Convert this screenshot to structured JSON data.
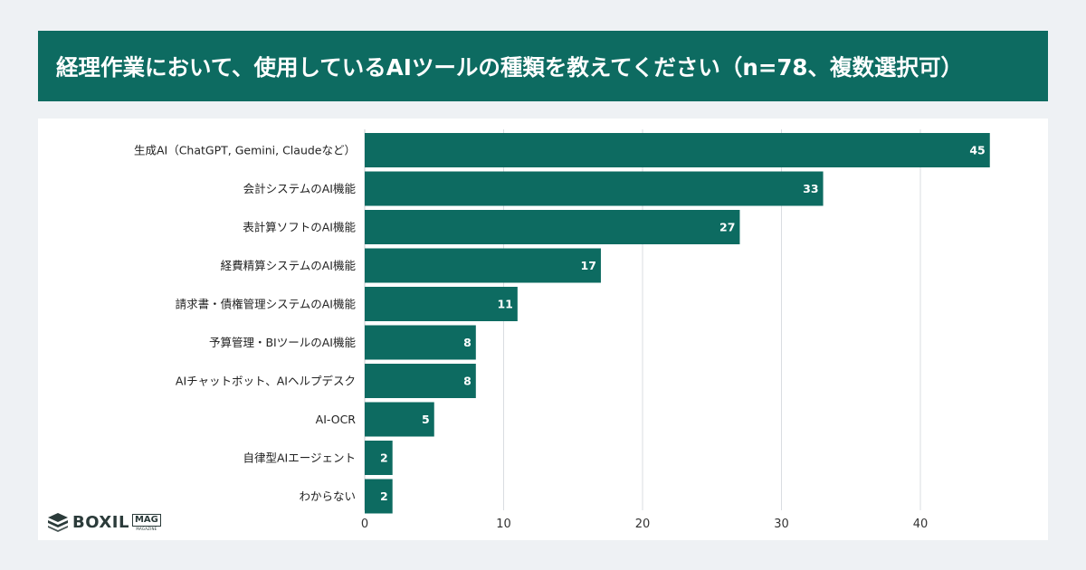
{
  "header": {
    "title": "経理作業において、使用しているAIツールの種類を教えてください（n=78、複数選択可）"
  },
  "logo": {
    "brand": "BOXIL",
    "sub_badge": "MAG",
    "sub_text": "MAGAZINE"
  },
  "colors": {
    "header_bg": "#0d6b61",
    "bar": "#0d6b61",
    "background": "#eef1f4"
  },
  "chart_data": {
    "type": "bar",
    "orientation": "horizontal",
    "categories": [
      "生成AI（ChatGPT, Gemini, Claudeなど）",
      "会計システムのAI機能",
      "表計算ソフトのAI機能",
      "経費精算システムのAI機能",
      "請求書・債権管理システムのAI機能",
      "予算管理・BIツールのAI機能",
      "AIチャットボット、AIヘルプデスク",
      "AI-OCR",
      "自律型AIエージェント",
      "わからない"
    ],
    "values": [
      45,
      33,
      27,
      17,
      11,
      8,
      8,
      5,
      2,
      2
    ],
    "xlim": [
      0,
      45
    ],
    "xticks": [
      0,
      10,
      20,
      30,
      40
    ],
    "grid": true,
    "data_labels": true
  }
}
